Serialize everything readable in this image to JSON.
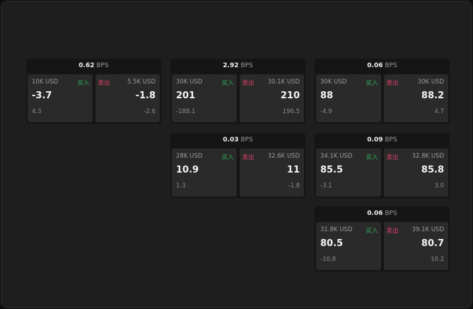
{
  "labels": {
    "buy": "买入",
    "sell": "卖出",
    "unit": "BPS"
  },
  "widgets": [
    {
      "spread": "0.62",
      "buy": {
        "amount": "10K USD",
        "price": "-3.7",
        "change": "4.3"
      },
      "sell": {
        "amount": "5.5K USD",
        "price": "-1.8",
        "change": "-2.6"
      }
    },
    {
      "spread": "2.92",
      "buy": {
        "amount": "30K USD",
        "price": "201",
        "change": "-188.1"
      },
      "sell": {
        "amount": "30.1K USD",
        "price": "210",
        "change": "196.5"
      }
    },
    {
      "spread": "0.06",
      "buy": {
        "amount": "30K USD",
        "price": "88",
        "change": "-4.9"
      },
      "sell": {
        "amount": "30K USD",
        "price": "88.2",
        "change": "4.7"
      }
    },
    {
      "spread": "0.03",
      "buy": {
        "amount": "28K USD",
        "price": "10.9",
        "change": "1.3"
      },
      "sell": {
        "amount": "32.6K USD",
        "price": "11",
        "change": "-1.8"
      }
    },
    {
      "spread": "0.09",
      "buy": {
        "amount": "34.1K USD",
        "price": "85.5",
        "change": "-3.1"
      },
      "sell": {
        "amount": "32.8K USD",
        "price": "85.8",
        "change": "3.0"
      }
    },
    {
      "spread": "0.06",
      "buy": {
        "amount": "31.8K USD",
        "price": "80.5",
        "change": "-10.8"
      },
      "sell": {
        "amount": "39.1K USD",
        "price": "80.7",
        "change": "10.2"
      }
    }
  ]
}
